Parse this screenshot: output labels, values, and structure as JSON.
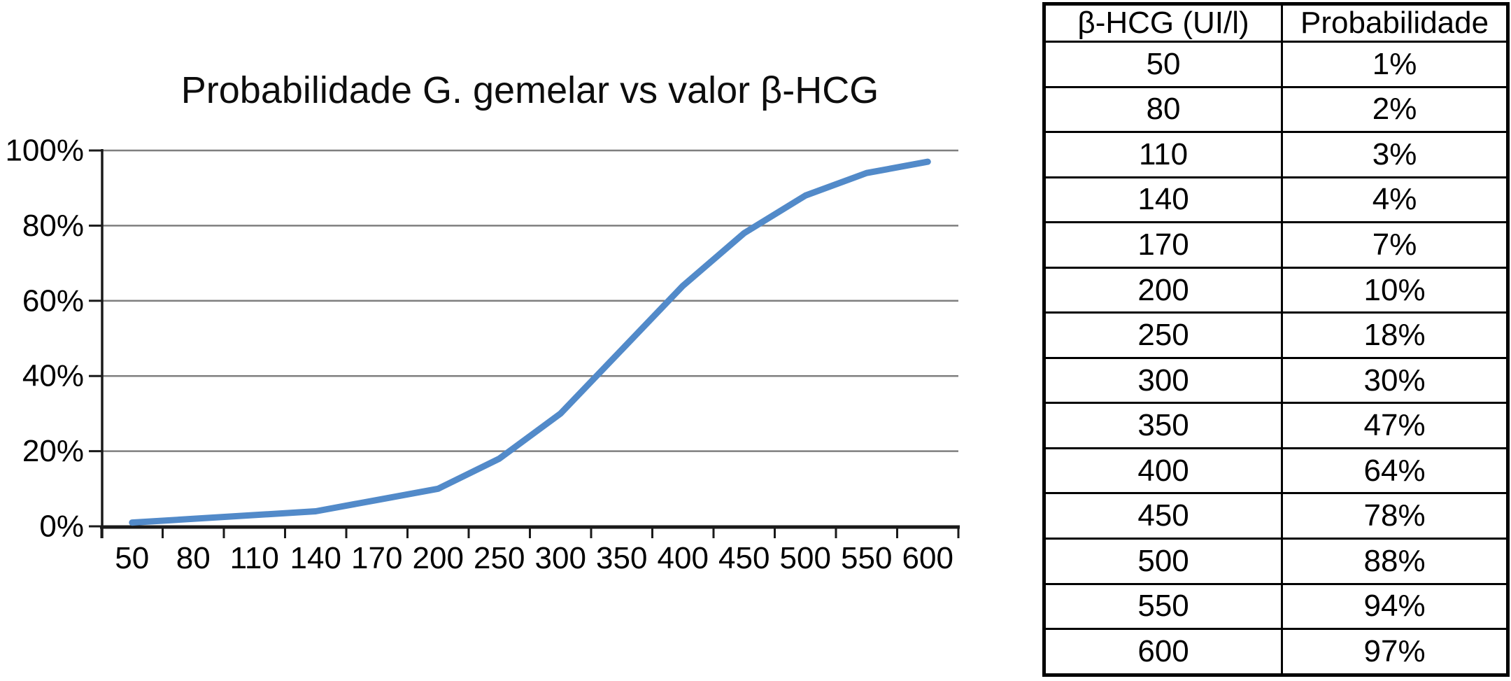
{
  "chart_data": {
    "type": "line",
    "title": "Probabilidade G. gemelar vs valor β-HCG",
    "categories": [
      "50",
      "80",
      "110",
      "140",
      "170",
      "200",
      "250",
      "300",
      "350",
      "400",
      "450",
      "500",
      "550",
      "600"
    ],
    "values": [
      1,
      2,
      3,
      4,
      7,
      10,
      18,
      30,
      47,
      64,
      78,
      88,
      94,
      97
    ],
    "series_name": "Probabilidade",
    "xlabel": "",
    "ylabel": "",
    "y_ticks": [
      "0%",
      "20%",
      "40%",
      "60%",
      "80%",
      "100%"
    ],
    "ylim": [
      0,
      100
    ],
    "grid": true,
    "legend_position": "none",
    "line_color": "#528AC9",
    "gridline_color": "#7F7F7F",
    "axis_color": "#1A1A1A"
  },
  "table": {
    "headers": [
      "β-HCG (UI/l)",
      "Probabilidade"
    ],
    "rows": [
      [
        "50",
        "1%"
      ],
      [
        "80",
        "2%"
      ],
      [
        "110",
        "3%"
      ],
      [
        "140",
        "4%"
      ],
      [
        "170",
        "7%"
      ],
      [
        "200",
        "10%"
      ],
      [
        "250",
        "18%"
      ],
      [
        "300",
        "30%"
      ],
      [
        "350",
        "47%"
      ],
      [
        "400",
        "64%"
      ],
      [
        "450",
        "78%"
      ],
      [
        "500",
        "88%"
      ],
      [
        "550",
        "94%"
      ],
      [
        "600",
        "97%"
      ]
    ]
  }
}
